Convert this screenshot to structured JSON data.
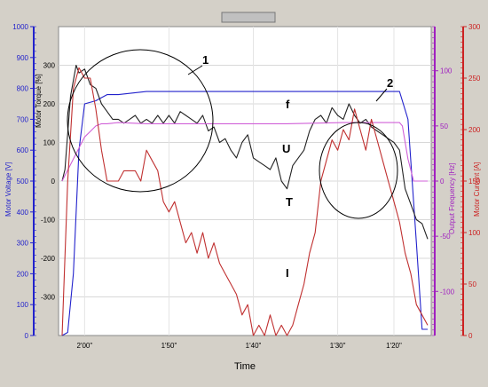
{
  "chart_data": {
    "type": "line",
    "xlabel": "Time",
    "x_ticks": [
      "2'00\"",
      "1'50\"",
      "1'40\"",
      "1'30\"",
      "1'20\""
    ],
    "axes": {
      "voltage": {
        "label": "Motor Voltage [V]",
        "range": [
          0,
          1000
        ],
        "ticks": [
          "0",
          "100",
          "200",
          "300",
          "400",
          "500",
          "600",
          "700",
          "800",
          "900",
          "1000"
        ],
        "color": "#2222cc"
      },
      "torque": {
        "label": "Motor Torque [%]",
        "range": [
          -400,
          400
        ],
        "ticks": [
          "-300",
          "-200",
          "-100",
          "0",
          "100",
          "200",
          "300"
        ],
        "color": "#000000"
      },
      "frequency": {
        "label": "Output Frequency [Hz]",
        "range": [
          -140,
          140
        ],
        "ticks": [
          "-100",
          "-50",
          "0",
          "50",
          "100"
        ],
        "color": "#a020c0"
      },
      "current": {
        "label": "Motor Current [A]",
        "range": [
          0,
          300
        ],
        "ticks": [
          "0",
          "50",
          "100",
          "150",
          "200",
          "250",
          "300"
        ],
        "color": "#cc2222"
      }
    },
    "series": [
      {
        "key": "U",
        "color": "#2222cc",
        "axis": "voltage",
        "label": "U",
        "t": [
          0,
          2,
          4,
          6,
          8,
          12,
          14,
          16,
          20,
          30,
          40,
          60,
          80,
          100,
          120,
          123,
          126,
          128,
          130
        ],
        "values": [
          0,
          10,
          200,
          600,
          750,
          760,
          770,
          780,
          780,
          790,
          790,
          790,
          790,
          790,
          790,
          700,
          300,
          20,
          20
        ]
      },
      {
        "key": "T",
        "color": "#222222",
        "axis": "torque",
        "label": "T",
        "t": [
          0,
          1,
          3,
          5,
          6,
          8,
          10,
          12,
          14,
          16,
          18,
          20,
          22,
          24,
          26,
          28,
          30,
          32,
          34,
          36,
          38,
          40,
          42,
          44,
          46,
          48,
          50,
          52,
          54,
          56,
          58,
          60,
          62,
          64,
          66,
          68,
          70,
          72,
          74,
          76,
          78,
          80,
          82,
          84,
          86,
          88,
          90,
          92,
          94,
          96,
          98,
          100,
          102,
          104,
          106,
          108,
          110,
          112,
          114,
          116,
          118,
          120,
          122,
          124,
          126,
          128,
          130
        ],
        "values": [
          0,
          30,
          220,
          300,
          280,
          290,
          250,
          240,
          200,
          180,
          160,
          160,
          150,
          160,
          170,
          150,
          160,
          150,
          170,
          150,
          170,
          150,
          180,
          170,
          160,
          150,
          170,
          130,
          140,
          100,
          110,
          80,
          60,
          100,
          120,
          60,
          50,
          40,
          30,
          60,
          0,
          -20,
          40,
          60,
          80,
          130,
          160,
          170,
          150,
          190,
          170,
          160,
          200,
          170,
          150,
          160,
          140,
          130,
          120,
          110,
          100,
          80,
          -20,
          -60,
          -100,
          -110,
          -150
        ]
      },
      {
        "key": "f",
        "color": "#d060d8",
        "axis": "frequency",
        "label": "f",
        "t": [
          0,
          2,
          4,
          6,
          8,
          10,
          12,
          14,
          16,
          20,
          30,
          40,
          60,
          80,
          100,
          120,
          121,
          123,
          125,
          127,
          130
        ],
        "values": [
          0,
          10,
          20,
          30,
          40,
          45,
          50,
          52,
          52,
          53,
          52,
          52,
          52,
          52,
          53,
          53,
          50,
          20,
          0,
          0,
          0
        ]
      },
      {
        "key": "I",
        "color": "#c03030",
        "axis": "current",
        "label": "I",
        "t": [
          0,
          2,
          4,
          6,
          8,
          10,
          12,
          14,
          16,
          18,
          20,
          22,
          24,
          26,
          28,
          30,
          32,
          34,
          36,
          38,
          40,
          42,
          44,
          46,
          48,
          50,
          52,
          54,
          56,
          58,
          60,
          62,
          64,
          66,
          68,
          70,
          72,
          74,
          76,
          78,
          80,
          82,
          84,
          86,
          88,
          90,
          92,
          94,
          96,
          98,
          100,
          102,
          104,
          106,
          108,
          110,
          112,
          114,
          116,
          118,
          120,
          122,
          124,
          126,
          128,
          130
        ],
        "values": [
          0,
          150,
          240,
          260,
          250,
          250,
          220,
          180,
          150,
          150,
          150,
          160,
          160,
          160,
          150,
          180,
          170,
          160,
          130,
          120,
          130,
          110,
          90,
          100,
          80,
          100,
          75,
          90,
          70,
          60,
          50,
          40,
          20,
          30,
          0,
          10,
          0,
          20,
          0,
          10,
          0,
          10,
          30,
          50,
          80,
          100,
          150,
          170,
          190,
          180,
          200,
          190,
          220,
          200,
          180,
          210,
          190,
          170,
          150,
          130,
          110,
          80,
          60,
          30,
          20,
          10
        ]
      }
    ],
    "annotations": [
      {
        "text": "1",
        "type": "circle-callout"
      },
      {
        "text": "2",
        "type": "circle-callout"
      }
    ]
  },
  "toolbar": {
    "icons": [
      "toolbar-icon"
    ]
  }
}
